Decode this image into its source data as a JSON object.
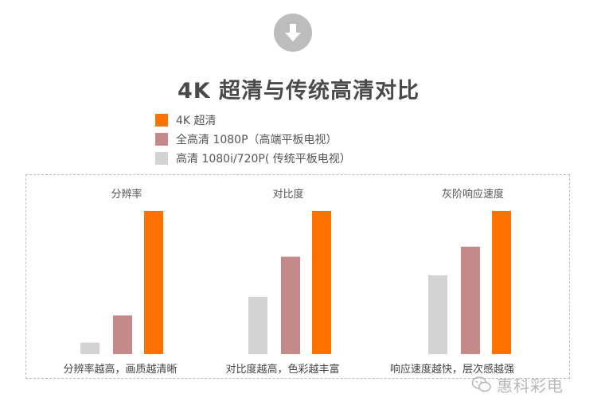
{
  "header": {
    "title": "4K 超清与传统高清对比"
  },
  "legend": [
    {
      "label": "4K 超清",
      "color": "#ff7200"
    },
    {
      "label": "全高清 1080P（高端平板电视）",
      "color": "#c48a8a"
    },
    {
      "label": "高清 1080i/720P( 传统平板电视）",
      "color": "#d3d3d3"
    }
  ],
  "watermark": {
    "text": "惠科彩电"
  },
  "chart_data": {
    "type": "bar",
    "series_order": [
      "高清 1080i/720P( 传统平板电视）",
      "全高清 1080P（高端平板电视）",
      "4K 超清"
    ],
    "series_colors": [
      "#d3d3d3",
      "#c48a8a",
      "#ff7200"
    ],
    "ylim": [
      0,
      100
    ],
    "grid": false,
    "legend_position": "top-left",
    "groups": [
      {
        "title": "分辨率",
        "caption": "分辨率越高，画质越清晰",
        "values": [
          8,
          27,
          100
        ]
      },
      {
        "title": "对比度",
        "caption": "对比度越高，色彩越丰富",
        "values": [
          40,
          68,
          100
        ]
      },
      {
        "title": "灰阶响应速度",
        "caption": "响应速度越快，层次感越强",
        "values": [
          55,
          75,
          100
        ]
      }
    ]
  }
}
